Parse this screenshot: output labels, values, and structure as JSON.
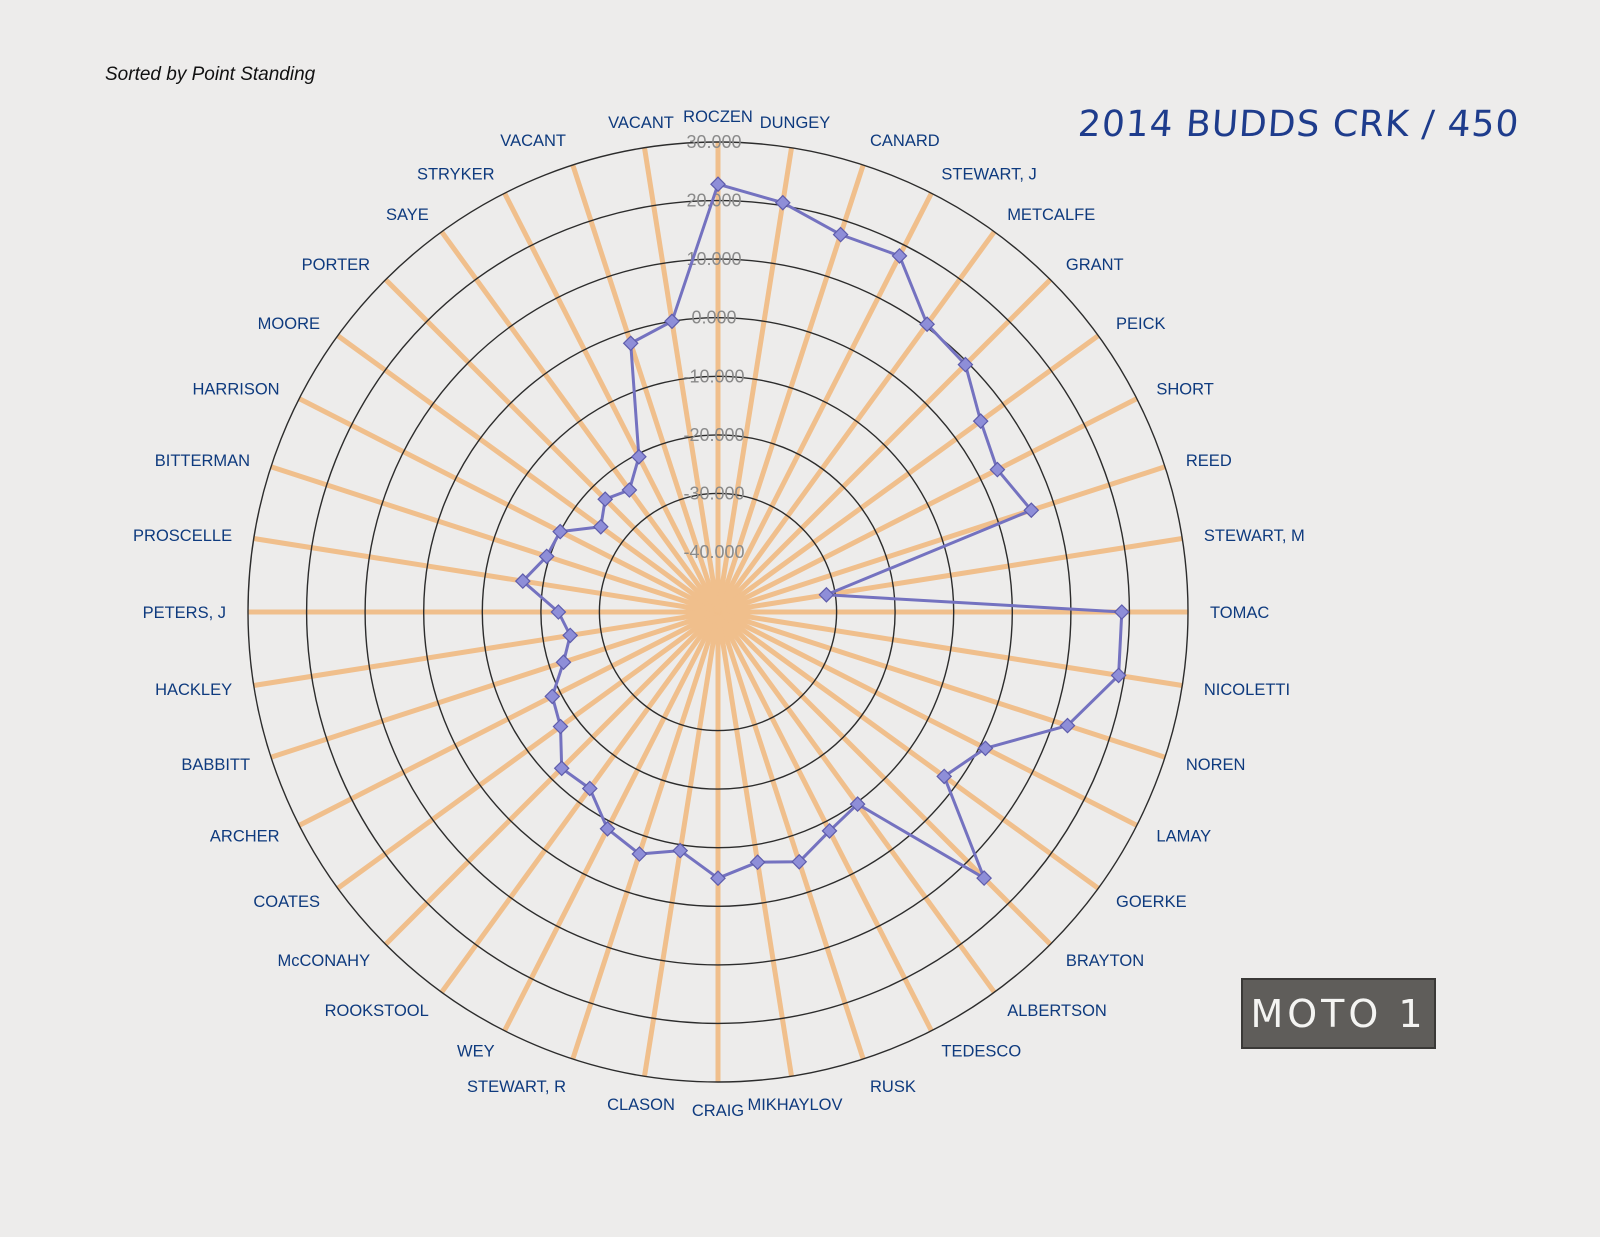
{
  "subtitle": "Sorted by Point Standing",
  "title": "2014 BUDDS CRK / 450",
  "badge": "MOTO 1",
  "chart_data": {
    "type": "radar",
    "title": "2014 BUDDS CRK / 450",
    "subtitle": "Sorted by Point Standing",
    "rmin": -40000,
    "rmax": 30000,
    "ticks": [
      -40000,
      -30000,
      -20000,
      -10000,
      0,
      10000,
      20000,
      30000
    ],
    "tick_labels": [
      "-40.000",
      "-30.000",
      "-20.000",
      "-10.000",
      "0.000",
      "10.000",
      "20.000",
      "30.000"
    ],
    "categories": [
      "ROCZEN",
      "DUNGEY",
      "CANARD",
      "STEWART, J",
      "METCALFE",
      "GRANT",
      "PEICK",
      "SHORT",
      "REED",
      "STEWART, M",
      "TOMAC",
      "NICOLETTI",
      "NOREN",
      "LAMAY",
      "GOERKE",
      "BRAYTON",
      "ALBERTSON",
      "TEDESCO",
      "RUSK",
      "MIKHAYLOV",
      "CRAIG",
      "CLASON",
      "STEWART, R",
      "WEY",
      "ROOKSTOOL",
      "McCONAHY",
      "COATES",
      "ARCHER",
      "BABBITT",
      "HACKLEY",
      "PETERS, J",
      "PROSCELLE",
      "BITTERMAN",
      "HARRISON",
      "MOORE",
      "PORTER",
      "SAYE",
      "STRYKER",
      "VACANT",
      "VACANT"
    ],
    "series": [
      {
        "values": [
          22800,
          20500,
          17500,
          18000,
          10500,
          9500,
          5200,
          3300,
          6000,
          -31500,
          18700,
          19000,
          12500,
          1000,
          -2500,
          14000,
          -9700,
          -8300,
          -5400,
          -7000,
          -4800,
          -9000,
          -6800,
          -8700,
          -13000,
          -12500,
          -17000,
          -18500,
          -22500,
          -24700,
          -23000,
          -16500,
          -19500,
          -20000,
          -25500,
          -23000,
          -24500,
          -20500,
          -2000,
          0
        ]
      }
    ],
    "colors": {
      "series": "#7472c0",
      "spokes": "#f0bf8c",
      "rings": "#2c2c2c",
      "labels": "#0e3a7e",
      "ticks": "#8a8a8a"
    },
    "grid": true
  }
}
